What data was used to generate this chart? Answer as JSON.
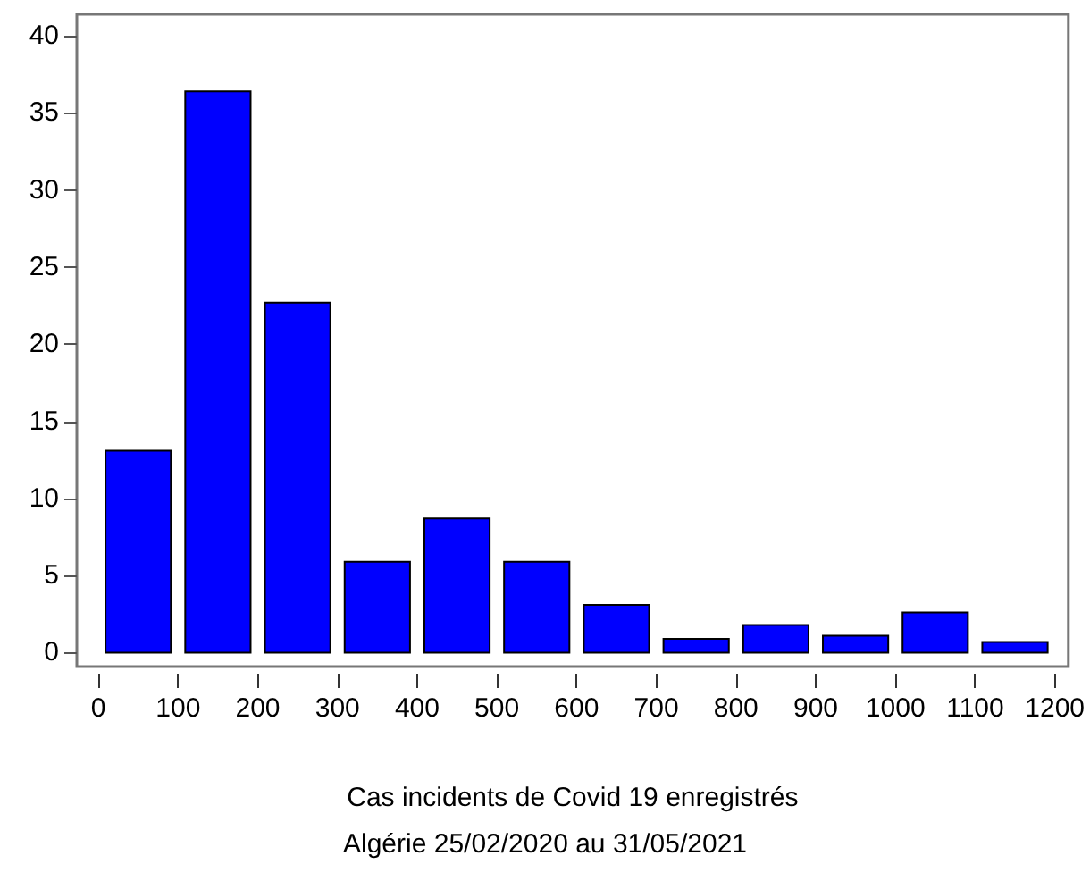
{
  "chart_data": {
    "type": "histogram",
    "bins": [
      0,
      100,
      200,
      300,
      400,
      500,
      600,
      700,
      800,
      900,
      1000,
      1100,
      1200
    ],
    "values": [
      13.1,
      36.4,
      22.7,
      5.9,
      8.7,
      5.9,
      3.1,
      0.9,
      1.8,
      1.1,
      2.6,
      0.7
    ],
    "color": "#0000ff",
    "xlim": [
      -27,
      1217
    ],
    "xticks": [
      0,
      100,
      200,
      300,
      400,
      500,
      600,
      700,
      800,
      900,
      1000,
      1100,
      1200
    ],
    "ylim": [
      -0.9,
      41.4
    ],
    "yticks": [
      0,
      5,
      10,
      15,
      20,
      25,
      30,
      35,
      40
    ],
    "xlabel": "Cas incidents de Covid 19 enregistrés",
    "annotations": [
      "Algérie 25/02/2020 au 31/05/2021"
    ],
    "grid": false
  }
}
